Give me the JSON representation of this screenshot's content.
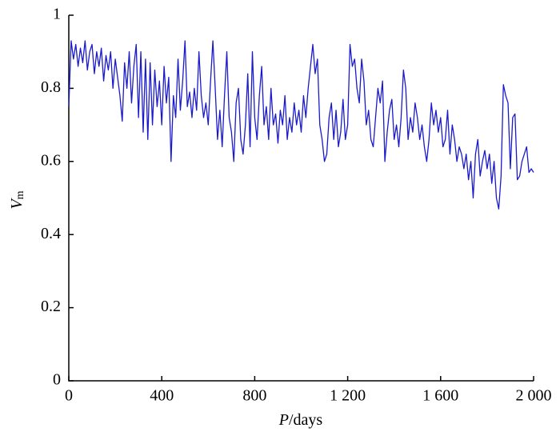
{
  "chart_data": {
    "type": "line",
    "xlabel": [
      "P",
      "/days"
    ],
    "ylabel": [
      "V",
      "m"
    ],
    "xlim": [
      0,
      2000
    ],
    "ylim": [
      0,
      1
    ],
    "xticks": [
      0,
      400,
      800,
      {
        "value": 1200,
        "label": "1 200"
      },
      {
        "value": 1600,
        "label": "1 600"
      },
      {
        "value": 2000,
        "label": "2 000"
      }
    ],
    "yticks": [
      0,
      0.2,
      0.4,
      0.6,
      0.8,
      1
    ],
    "grid": false,
    "x": [
      0,
      10,
      20,
      30,
      40,
      50,
      60,
      70,
      80,
      90,
      100,
      110,
      120,
      130,
      140,
      150,
      160,
      170,
      180,
      190,
      200,
      210,
      220,
      230,
      240,
      250,
      260,
      270,
      280,
      290,
      300,
      310,
      320,
      330,
      340,
      350,
      360,
      370,
      380,
      390,
      400,
      410,
      420,
      430,
      440,
      450,
      460,
      470,
      480,
      490,
      500,
      510,
      520,
      530,
      540,
      550,
      560,
      570,
      580,
      590,
      600,
      610,
      620,
      630,
      640,
      650,
      660,
      670,
      680,
      690,
      700,
      710,
      720,
      730,
      740,
      750,
      760,
      770,
      780,
      790,
      800,
      810,
      820,
      830,
      840,
      850,
      860,
      870,
      880,
      890,
      900,
      910,
      920,
      930,
      940,
      950,
      960,
      970,
      980,
      990,
      1000,
      1010,
      1020,
      1030,
      1040,
      1050,
      1060,
      1070,
      1080,
      1090,
      1100,
      1110,
      1120,
      1130,
      1140,
      1150,
      1160,
      1170,
      1180,
      1190,
      1200,
      1210,
      1220,
      1230,
      1240,
      1250,
      1260,
      1270,
      1280,
      1290,
      1300,
      1310,
      1320,
      1330,
      1340,
      1350,
      1360,
      1370,
      1380,
      1390,
      1400,
      1410,
      1420,
      1430,
      1440,
      1450,
      1460,
      1470,
      1480,
      1490,
      1500,
      1510,
      1520,
      1530,
      1540,
      1550,
      1560,
      1570,
      1580,
      1590,
      1600,
      1610,
      1620,
      1630,
      1640,
      1650,
      1660,
      1670,
      1680,
      1690,
      1700,
      1710,
      1720,
      1730,
      1740,
      1750,
      1760,
      1770,
      1780,
      1790,
      1800,
      1810,
      1820,
      1830,
      1840,
      1850,
      1860,
      1870,
      1880,
      1890,
      1900,
      1910,
      1920,
      1930,
      1940,
      1950,
      1960,
      1970,
      1980,
      1990,
      2000
    ],
    "series": [
      {
        "name": "Vm",
        "color": "#1a1acc",
        "values": [
          0.75,
          0.93,
          0.88,
          0.92,
          0.86,
          0.91,
          0.87,
          0.93,
          0.85,
          0.9,
          0.92,
          0.84,
          0.9,
          0.86,
          0.91,
          0.82,
          0.89,
          0.85,
          0.9,
          0.8,
          0.88,
          0.83,
          0.78,
          0.71,
          0.87,
          0.8,
          0.9,
          0.76,
          0.86,
          0.92,
          0.72,
          0.9,
          0.68,
          0.88,
          0.66,
          0.87,
          0.7,
          0.85,
          0.75,
          0.82,
          0.7,
          0.86,
          0.76,
          0.83,
          0.6,
          0.78,
          0.72,
          0.88,
          0.74,
          0.82,
          0.93,
          0.75,
          0.79,
          0.72,
          0.8,
          0.74,
          0.9,
          0.78,
          0.72,
          0.76,
          0.7,
          0.82,
          0.93,
          0.8,
          0.66,
          0.74,
          0.64,
          0.78,
          0.9,
          0.72,
          0.68,
          0.6,
          0.76,
          0.8,
          0.66,
          0.62,
          0.7,
          0.84,
          0.64,
          0.9,
          0.72,
          0.66,
          0.78,
          0.86,
          0.7,
          0.75,
          0.66,
          0.8,
          0.7,
          0.73,
          0.65,
          0.74,
          0.7,
          0.78,
          0.66,
          0.72,
          0.68,
          0.76,
          0.7,
          0.74,
          0.68,
          0.78,
          0.72,
          0.8,
          0.86,
          0.92,
          0.84,
          0.88,
          0.7,
          0.66,
          0.6,
          0.62,
          0.72,
          0.76,
          0.66,
          0.74,
          0.64,
          0.68,
          0.77,
          0.66,
          0.7,
          0.92,
          0.86,
          0.88,
          0.8,
          0.76,
          0.88,
          0.82,
          0.7,
          0.74,
          0.66,
          0.64,
          0.72,
          0.8,
          0.76,
          0.82,
          0.6,
          0.68,
          0.74,
          0.77,
          0.66,
          0.7,
          0.64,
          0.72,
          0.85,
          0.8,
          0.66,
          0.72,
          0.68,
          0.76,
          0.72,
          0.66,
          0.7,
          0.64,
          0.6,
          0.66,
          0.76,
          0.7,
          0.74,
          0.68,
          0.72,
          0.64,
          0.66,
          0.74,
          0.62,
          0.7,
          0.66,
          0.6,
          0.64,
          0.62,
          0.58,
          0.62,
          0.55,
          0.6,
          0.5,
          0.62,
          0.66,
          0.56,
          0.6,
          0.63,
          0.58,
          0.62,
          0.54,
          0.6,
          0.5,
          0.47,
          0.56,
          0.81,
          0.78,
          0.76,
          0.58,
          0.72,
          0.73,
          0.55,
          0.56,
          0.6,
          0.62,
          0.64,
          0.57,
          0.58,
          0.57
        ]
      }
    ]
  }
}
